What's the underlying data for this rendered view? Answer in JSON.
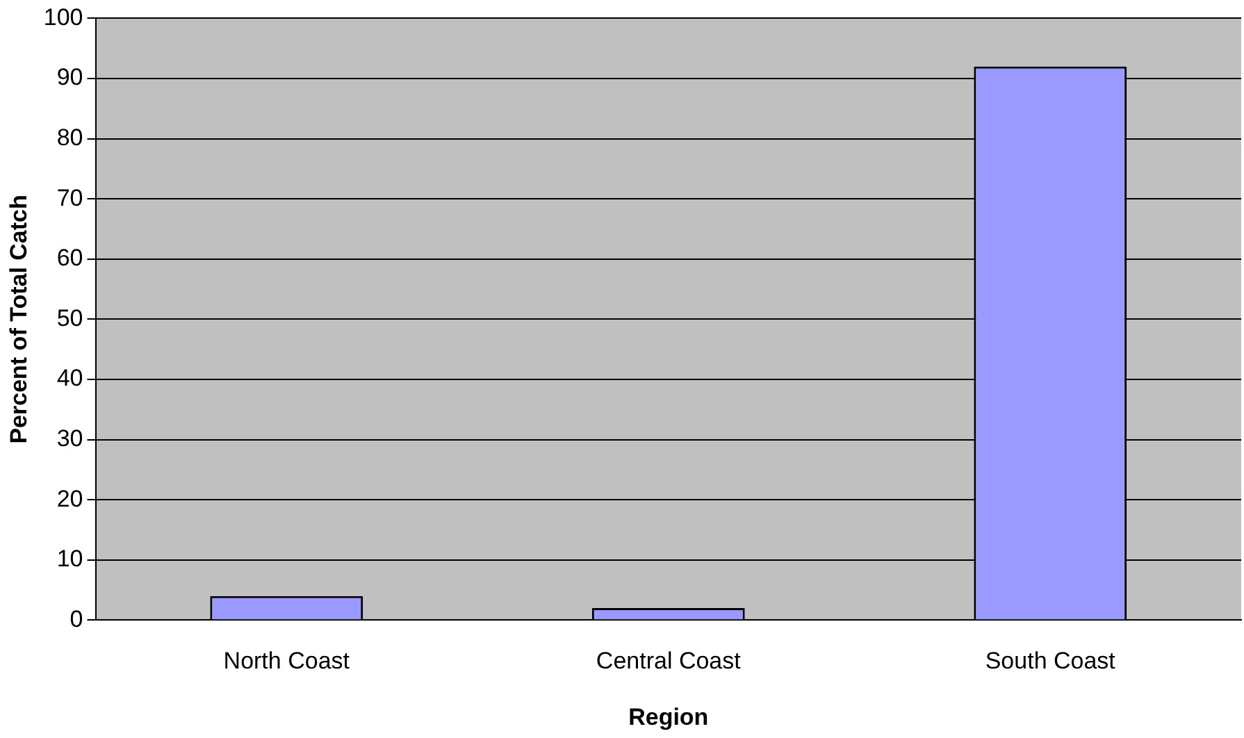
{
  "chart_data": {
    "type": "bar",
    "xlabel": "Region",
    "ylabel": "Percent of Total Catch",
    "categories": [
      "North Coast",
      "Central Coast",
      "South Coast"
    ],
    "values": [
      4,
      2,
      92
    ],
    "color": "#9999ff",
    "ylim": [
      0,
      100
    ],
    "yticks": [
      0,
      10,
      20,
      30,
      40,
      50,
      60,
      70,
      80,
      90,
      100
    ],
    "grid": "y",
    "legend": false
  }
}
